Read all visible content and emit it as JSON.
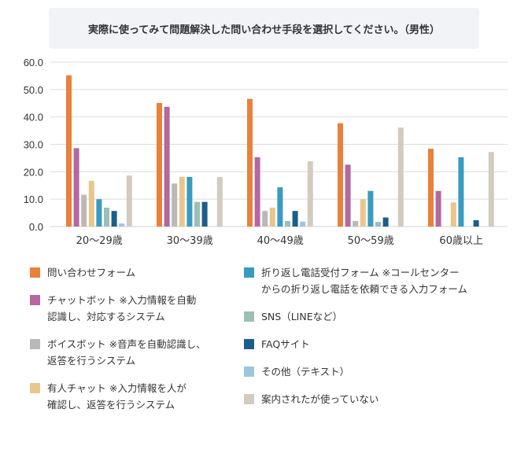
{
  "chart_data": {
    "type": "bar",
    "title": "実際に使ってみて問題解決した問い合わせ手段を選択してください。（男性）",
    "xlabel": "",
    "ylabel": "",
    "ylim": [
      0,
      60
    ],
    "y_ticks": [
      "0.0",
      "10.0",
      "20.0",
      "30.0",
      "40.0",
      "50.0",
      "60.0"
    ],
    "grid": true,
    "legend_position": "bottom",
    "categories": [
      "20〜29歳",
      "30〜39歳",
      "40〜49歳",
      "50〜59歳",
      "60歳以上"
    ],
    "series": [
      {
        "name": "問い合わせフォーム",
        "color": "#e8813a",
        "values": [
          55.2,
          45.1,
          46.6,
          37.7,
          28.4
        ]
      },
      {
        "name": "チャットボット ※入力情報を自動\n認識し、対応するシステム",
        "color": "#b5679f",
        "values": [
          28.6,
          43.7,
          25.3,
          22.6,
          13.0
        ]
      },
      {
        "name": "ボイスボット ※音声を自動認識し、\n返答を行うシステム",
        "color": "#b9b9b9",
        "values": [
          11.6,
          15.7,
          5.7,
          2.0,
          0
        ]
      },
      {
        "name": "有人チャット ※入力情報を人が\n確認し、返答を行うシステム",
        "color": "#e8c68c",
        "values": [
          16.7,
          18.1,
          6.9,
          10.0,
          8.8
        ]
      },
      {
        "name": "折り返し電話受付フォーム ※コールセンター\nからの折り返し電話を依頼できる入力フォーム",
        "color": "#3a9bc0",
        "values": [
          10.0,
          18.1,
          14.3,
          13.0,
          25.3
        ]
      },
      {
        "name": "SNS（LINEなど）",
        "color": "#9dbfb5",
        "values": [
          6.9,
          9.0,
          2.0,
          1.7,
          0
        ]
      },
      {
        "name": "FAQサイト",
        "color": "#1b5e8a",
        "values": [
          5.7,
          9.0,
          5.7,
          3.3,
          2.3
        ]
      },
      {
        "name": "その他（テキスト）",
        "color": "#9cc6de",
        "values": [
          1.1,
          0,
          1.8,
          0,
          0
        ]
      },
      {
        "name": "案内されたが使っていない",
        "color": "#d3cbc1",
        "values": [
          18.6,
          18.1,
          23.8,
          36.1,
          27.2
        ]
      }
    ]
  }
}
